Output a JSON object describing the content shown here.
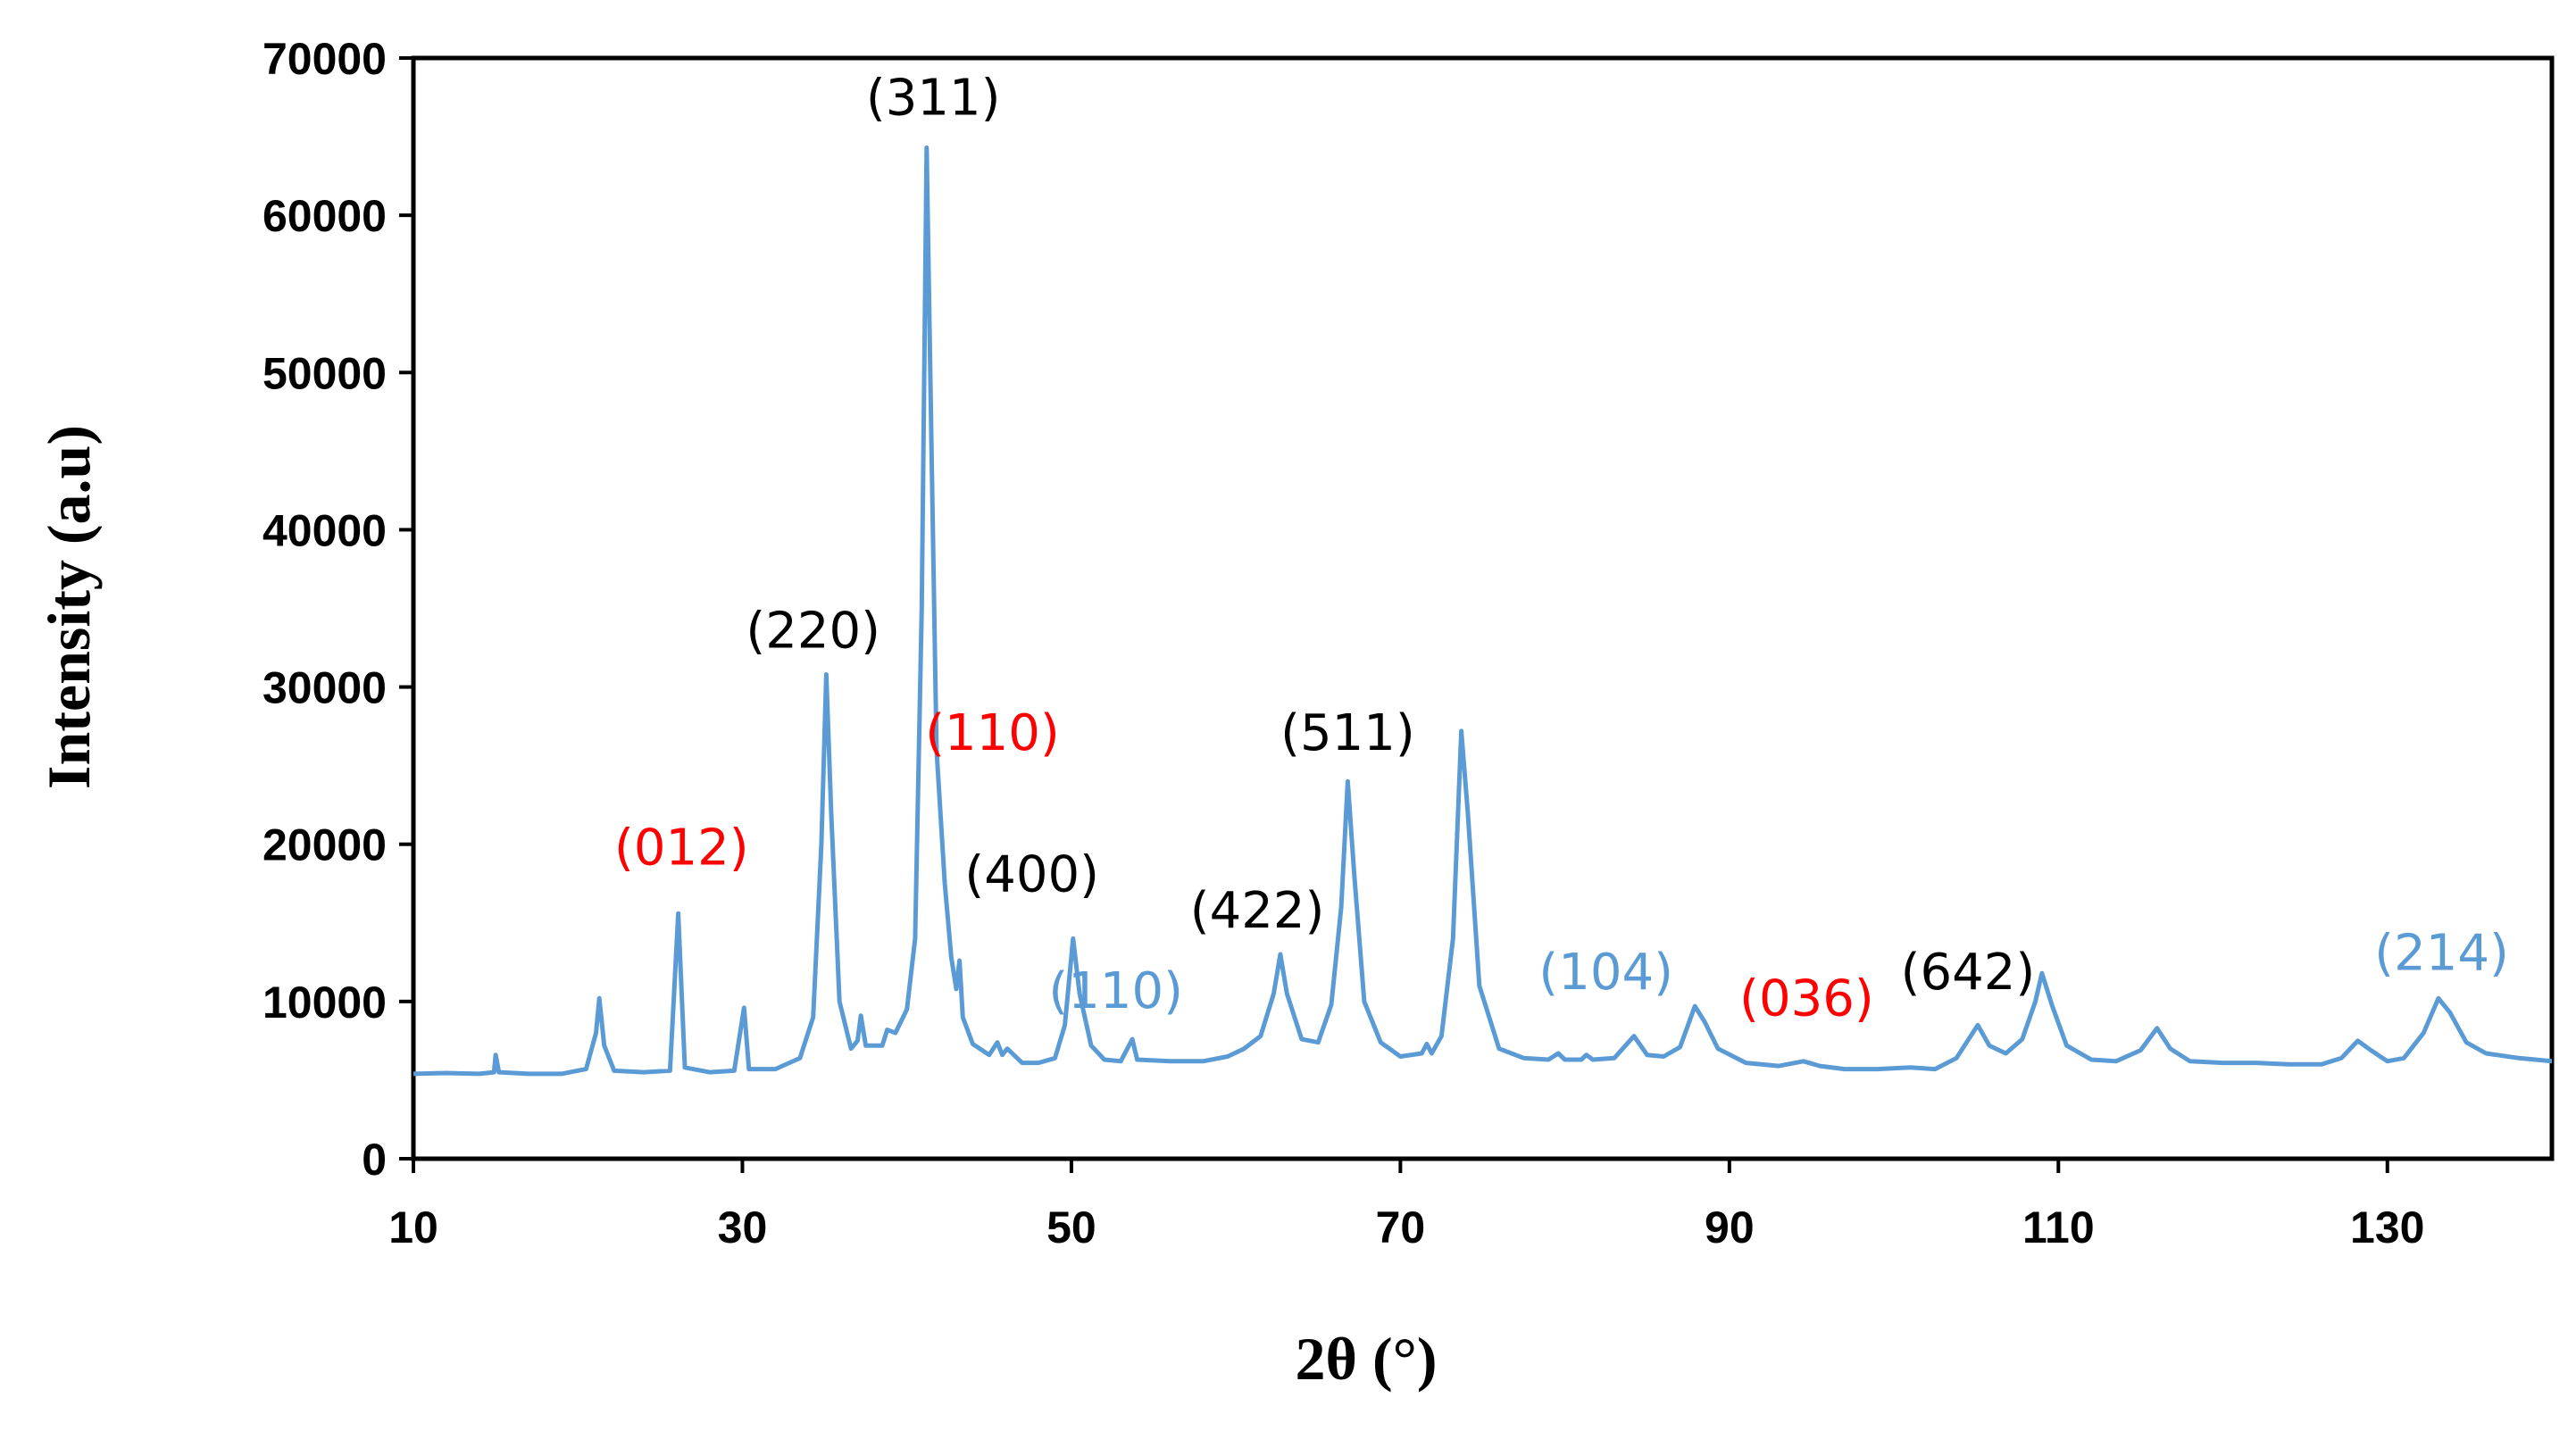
{
  "chart_data": {
    "type": "line",
    "title": "",
    "xlabel": "2θ (°)",
    "ylabel": "Intensity (a.u)",
    "xlim": [
      10,
      140
    ],
    "ylim": [
      0,
      70000
    ],
    "x_ticks": [
      10,
      30,
      50,
      70,
      90,
      110,
      130
    ],
    "y_ticks": [
      0,
      10000,
      20000,
      30000,
      40000,
      50000,
      60000,
      70000
    ],
    "grid": false,
    "legend": "none",
    "series": [
      {
        "color": "#5b9bd5",
        "points": [
          [
            10,
            5400
          ],
          [
            12,
            5450
          ],
          [
            14,
            5400
          ],
          [
            14.9,
            5500
          ],
          [
            15,
            6600
          ],
          [
            15.2,
            5500
          ],
          [
            17,
            5400
          ],
          [
            19,
            5400
          ],
          [
            20.5,
            5700
          ],
          [
            21.1,
            8000
          ],
          [
            21.3,
            10200
          ],
          [
            21.6,
            7200
          ],
          [
            22.2,
            5600
          ],
          [
            24,
            5500
          ],
          [
            25.6,
            5600
          ],
          [
            26.1,
            15600
          ],
          [
            26.5,
            5800
          ],
          [
            28,
            5500
          ],
          [
            29.5,
            5600
          ],
          [
            30.1,
            9600
          ],
          [
            30.4,
            5700
          ],
          [
            32,
            5700
          ],
          [
            33.5,
            6400
          ],
          [
            34.3,
            9000
          ],
          [
            34.8,
            20000
          ],
          [
            35.1,
            30800
          ],
          [
            35.4,
            22000
          ],
          [
            35.9,
            10000
          ],
          [
            36.6,
            7000
          ],
          [
            37,
            7500
          ],
          [
            37.2,
            9100
          ],
          [
            37.5,
            7200
          ],
          [
            38.5,
            7200
          ],
          [
            38.8,
            8200
          ],
          [
            39.3,
            8000
          ],
          [
            40,
            9500
          ],
          [
            40.5,
            14000
          ],
          [
            40.9,
            35000
          ],
          [
            41.2,
            64300
          ],
          [
            41.5,
            45000
          ],
          [
            41.8,
            26000
          ],
          [
            42.3,
            17500
          ],
          [
            42.7,
            12800
          ],
          [
            43,
            10800
          ],
          [
            43.2,
            12600
          ],
          [
            43.4,
            9000
          ],
          [
            44,
            7300
          ],
          [
            45,
            6600
          ],
          [
            45.5,
            7400
          ],
          [
            45.8,
            6600
          ],
          [
            46.1,
            7000
          ],
          [
            47,
            6100
          ],
          [
            48,
            6100
          ],
          [
            49,
            6400
          ],
          [
            49.6,
            8500
          ],
          [
            50.1,
            14000
          ],
          [
            50.5,
            10500
          ],
          [
            51.2,
            7200
          ],
          [
            52,
            6300
          ],
          [
            53,
            6200
          ],
          [
            53.7,
            7600
          ],
          [
            54,
            6300
          ],
          [
            56,
            6200
          ],
          [
            58,
            6200
          ],
          [
            59.5,
            6500
          ],
          [
            60.5,
            7000
          ],
          [
            61.5,
            7800
          ],
          [
            62.3,
            10500
          ],
          [
            62.7,
            13000
          ],
          [
            63.1,
            10500
          ],
          [
            64,
            7600
          ],
          [
            65,
            7400
          ],
          [
            65.8,
            9800
          ],
          [
            66.4,
            16000
          ],
          [
            66.8,
            24000
          ],
          [
            67.2,
            18000
          ],
          [
            67.8,
            10000
          ],
          [
            68.8,
            7400
          ],
          [
            70,
            6500
          ],
          [
            71.3,
            6700
          ],
          [
            71.6,
            7300
          ],
          [
            71.9,
            6700
          ],
          [
            72.5,
            7800
          ],
          [
            73.2,
            14000
          ],
          [
            73.7,
            27200
          ],
          [
            74.1,
            22000
          ],
          [
            74.8,
            11000
          ],
          [
            76,
            7000
          ],
          [
            77.5,
            6400
          ],
          [
            79,
            6300
          ],
          [
            79.6,
            6700
          ],
          [
            80,
            6300
          ],
          [
            81,
            6300
          ],
          [
            81.3,
            6600
          ],
          [
            81.7,
            6300
          ],
          [
            83,
            6400
          ],
          [
            84.2,
            7800
          ],
          [
            85,
            6600
          ],
          [
            86,
            6500
          ],
          [
            87,
            7100
          ],
          [
            87.9,
            9700
          ],
          [
            88.5,
            8700
          ],
          [
            89.3,
            7000
          ],
          [
            91,
            6100
          ],
          [
            93,
            5900
          ],
          [
            94.5,
            6200
          ],
          [
            95.5,
            5900
          ],
          [
            97,
            5700
          ],
          [
            99,
            5700
          ],
          [
            101,
            5800
          ],
          [
            102.5,
            5700
          ],
          [
            103.8,
            6400
          ],
          [
            105.1,
            8500
          ],
          [
            105.8,
            7200
          ],
          [
            106.8,
            6700
          ],
          [
            107.8,
            7600
          ],
          [
            108.6,
            10000
          ],
          [
            109,
            11800
          ],
          [
            109.6,
            9800
          ],
          [
            110.5,
            7200
          ],
          [
            112,
            6300
          ],
          [
            113.5,
            6200
          ],
          [
            115,
            6900
          ],
          [
            116,
            8300
          ],
          [
            116.8,
            7000
          ],
          [
            118,
            6200
          ],
          [
            120,
            6100
          ],
          [
            122,
            6100
          ],
          [
            124,
            6000
          ],
          [
            126,
            6000
          ],
          [
            127.2,
            6400
          ],
          [
            128.2,
            7500
          ],
          [
            129,
            6900
          ],
          [
            130,
            6200
          ],
          [
            131,
            6400
          ],
          [
            132.2,
            8000
          ],
          [
            133.1,
            10200
          ],
          [
            133.8,
            9300
          ],
          [
            134.8,
            7400
          ],
          [
            136,
            6700
          ],
          [
            138,
            6400
          ],
          [
            140,
            6200
          ]
        ]
      }
    ],
    "annotations": [
      {
        "text": "(012)",
        "color": "#ff0000"
      },
      {
        "text": "(220)",
        "color": "#000000"
      },
      {
        "text": "(311)",
        "color": "#000000"
      },
      {
        "text": "(110)",
        "color": "#ff0000"
      },
      {
        "text": "(400)",
        "color": "#000000"
      },
      {
        "text": "(110)",
        "color": "#5b9bd5"
      },
      {
        "text": "(422)",
        "color": "#000000"
      },
      {
        "text": "(511)",
        "color": "#000000"
      },
      {
        "text": "(104)",
        "color": "#5b9bd5"
      },
      {
        "text": "(036)",
        "color": "#ff0000"
      },
      {
        "text": "(642)",
        "color": "#000000"
      },
      {
        "text": "(214)",
        "color": "#5b9bd5"
      }
    ]
  }
}
